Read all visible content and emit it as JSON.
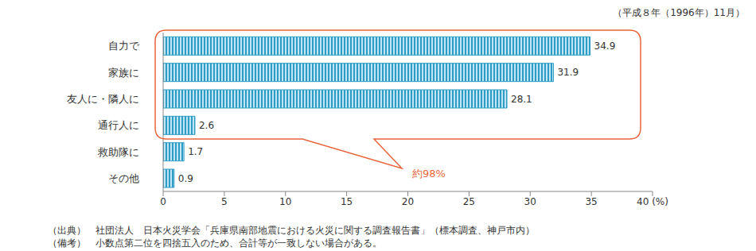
{
  "chart_data": {
    "type": "bar",
    "orientation": "horizontal",
    "subtitle": "（平成８年（1996年）11月）",
    "categories": [
      "自力で",
      "家族に",
      "友人に・隣人に",
      "通行人に",
      "救助隊に",
      "その他"
    ],
    "values": [
      34.9,
      31.9,
      28.1,
      2.6,
      1.7,
      0.9
    ],
    "color": "#2e9cc4",
    "xlim": [
      0,
      40
    ],
    "xticks": [
      0,
      5,
      10,
      15,
      20,
      25,
      30,
      35,
      {
        "value": 40,
        "label": "40 (%)"
      }
    ],
    "grid": false,
    "data_labels": true,
    "annotations": [
      "約98%"
    ],
    "footnotes": [
      "（出典）　社団法人　日本火災学会「兵庫県南部地震における火災に関する調査報告書」（標本調査、神戸市内）",
      "（備考）　小数点第二位を四捨五入のため、合計等が一致しない場合がある。"
    ]
  }
}
